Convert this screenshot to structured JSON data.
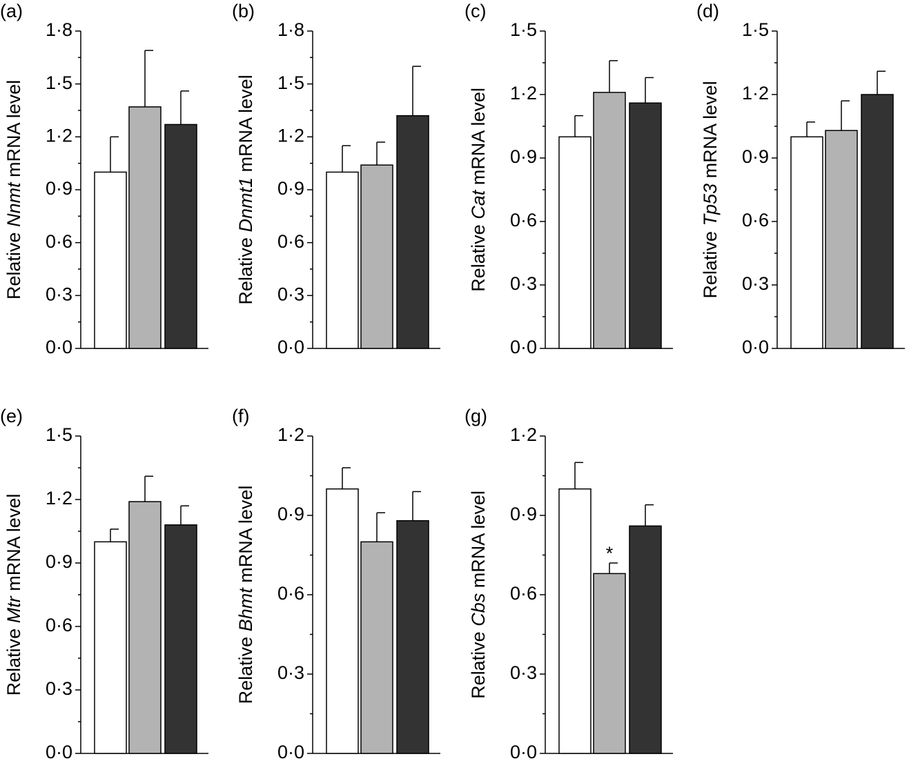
{
  "chart_data": [
    {
      "type": "bar",
      "panel_label": "(a)",
      "y_label_prefix": "Relative",
      "y_label_gene": "Nnmt",
      "y_label_suffix": "mRNA level",
      "categories": [
        null,
        null,
        null
      ],
      "values": [
        1.0,
        1.37,
        1.27
      ],
      "errors": [
        0.2,
        0.32,
        0.19
      ],
      "colors": [
        "#ffffff",
        "#b3b3b3",
        "#333333"
      ],
      "ylim": [
        0,
        1.8
      ],
      "yticks": [
        {
          "value": 0,
          "label": "0·0"
        },
        {
          "value": 0.3,
          "label": "0·3"
        },
        {
          "value": 0.6,
          "label": "0·6"
        },
        {
          "value": 0.9,
          "label": "0·9"
        },
        {
          "value": 1.2,
          "label": "1·2"
        },
        {
          "value": 1.5,
          "label": "1·5"
        },
        {
          "value": 1.8,
          "label": "1·8"
        }
      ],
      "minor_yticks": [
        0.15,
        0.45,
        0.75,
        1.05,
        1.35,
        1.65
      ]
    },
    {
      "type": "bar",
      "panel_label": "(b)",
      "y_label_prefix": "Relative",
      "y_label_gene": "Dnmt1",
      "y_label_suffix": "mRNA level",
      "categories": [
        null,
        null,
        null
      ],
      "values": [
        1.0,
        1.04,
        1.32
      ],
      "errors": [
        0.15,
        0.13,
        0.28
      ],
      "colors": [
        "#ffffff",
        "#b3b3b3",
        "#333333"
      ],
      "ylim": [
        0,
        1.8
      ],
      "yticks": [
        {
          "value": 0,
          "label": "0·0"
        },
        {
          "value": 0.3,
          "label": "0·3"
        },
        {
          "value": 0.6,
          "label": "0·6"
        },
        {
          "value": 0.9,
          "label": "0·9"
        },
        {
          "value": 1.2,
          "label": "1·2"
        },
        {
          "value": 1.5,
          "label": "1·5"
        },
        {
          "value": 1.8,
          "label": "1·8"
        }
      ],
      "minor_yticks": [
        0.15,
        0.45,
        0.75,
        1.05,
        1.35,
        1.65
      ]
    },
    {
      "type": "bar",
      "panel_label": "(c)",
      "y_label_prefix": "Relative",
      "y_label_gene": "Cat",
      "y_label_suffix": "mRNA level",
      "categories": [
        null,
        null,
        null
      ],
      "values": [
        1.0,
        1.21,
        1.16
      ],
      "errors": [
        0.1,
        0.15,
        0.12
      ],
      "colors": [
        "#ffffff",
        "#b3b3b3",
        "#333333"
      ],
      "ylim": [
        0,
        1.5
      ],
      "yticks": [
        {
          "value": 0,
          "label": "0·0"
        },
        {
          "value": 0.3,
          "label": "0·3"
        },
        {
          "value": 0.6,
          "label": "0·6"
        },
        {
          "value": 0.9,
          "label": "0·9"
        },
        {
          "value": 1.2,
          "label": "1·2"
        },
        {
          "value": 1.5,
          "label": "1·5"
        }
      ],
      "minor_yticks": [
        0.15,
        0.45,
        0.75,
        1.05,
        1.35
      ]
    },
    {
      "type": "bar",
      "panel_label": "(d)",
      "y_label_prefix": "Relative",
      "y_label_gene": "Tp53",
      "y_label_suffix": "mRNA level",
      "categories": [
        null,
        null,
        null
      ],
      "values": [
        1.0,
        1.03,
        1.2
      ],
      "errors": [
        0.07,
        0.14,
        0.11
      ],
      "colors": [
        "#ffffff",
        "#b3b3b3",
        "#333333"
      ],
      "ylim": [
        0,
        1.5
      ],
      "yticks": [
        {
          "value": 0,
          "label": "0·0"
        },
        {
          "value": 0.3,
          "label": "0·3"
        },
        {
          "value": 0.6,
          "label": "0·6"
        },
        {
          "value": 0.9,
          "label": "0·9"
        },
        {
          "value": 1.2,
          "label": "1·2"
        },
        {
          "value": 1.5,
          "label": "1·5"
        }
      ],
      "minor_yticks": [
        0.15,
        0.45,
        0.75,
        1.05,
        1.35
      ]
    },
    {
      "type": "bar",
      "panel_label": "(e)",
      "y_label_prefix": "Relative",
      "y_label_gene": "Mtr",
      "y_label_suffix": "mRNA level",
      "categories": [
        null,
        null,
        null
      ],
      "values": [
        1.0,
        1.19,
        1.08
      ],
      "errors": [
        0.06,
        0.12,
        0.09
      ],
      "colors": [
        "#ffffff",
        "#b3b3b3",
        "#333333"
      ],
      "ylim": [
        0,
        1.5
      ],
      "yticks": [
        {
          "value": 0,
          "label": "0·0"
        },
        {
          "value": 0.3,
          "label": "0·3"
        },
        {
          "value": 0.6,
          "label": "0·6"
        },
        {
          "value": 0.9,
          "label": "0·9"
        },
        {
          "value": 1.2,
          "label": "1·2"
        },
        {
          "value": 1.5,
          "label": "1·5"
        }
      ],
      "minor_yticks": [
        0.15,
        0.45,
        0.75,
        1.05,
        1.35
      ]
    },
    {
      "type": "bar",
      "panel_label": "(f)",
      "y_label_prefix": "Relative",
      "y_label_gene": "Bhmt",
      "y_label_suffix": "mRNA level",
      "categories": [
        null,
        null,
        null
      ],
      "values": [
        1.0,
        0.8,
        0.88
      ],
      "errors": [
        0.08,
        0.11,
        0.11
      ],
      "colors": [
        "#ffffff",
        "#b3b3b3",
        "#333333"
      ],
      "ylim": [
        0,
        1.2
      ],
      "yticks": [
        {
          "value": 0,
          "label": "0·0"
        },
        {
          "value": 0.3,
          "label": "0·3"
        },
        {
          "value": 0.6,
          "label": "0·6"
        },
        {
          "value": 0.9,
          "label": "0·9"
        },
        {
          "value": 1.2,
          "label": "1·2"
        }
      ],
      "minor_yticks": [
        0.15,
        0.45,
        0.75,
        1.05
      ]
    },
    {
      "type": "bar",
      "panel_label": "(g)",
      "y_label_prefix": "Relative",
      "y_label_gene": "Cbs",
      "y_label_suffix": "mRNA level",
      "categories": [
        null,
        null,
        null
      ],
      "values": [
        1.0,
        0.68,
        0.86
      ],
      "errors": [
        0.1,
        0.04,
        0.08
      ],
      "colors": [
        "#ffffff",
        "#b3b3b3",
        "#333333"
      ],
      "value_annotations": [
        null,
        "*",
        null
      ],
      "ylim": [
        0,
        1.2
      ],
      "yticks": [
        {
          "value": 0,
          "label": "0·0"
        },
        {
          "value": 0.3,
          "label": "0·3"
        },
        {
          "value": 0.6,
          "label": "0·6"
        },
        {
          "value": 0.9,
          "label": "0·9"
        },
        {
          "value": 1.2,
          "label": "1·2"
        }
      ],
      "minor_yticks": [
        0.15,
        0.45,
        0.75,
        1.05
      ]
    }
  ]
}
